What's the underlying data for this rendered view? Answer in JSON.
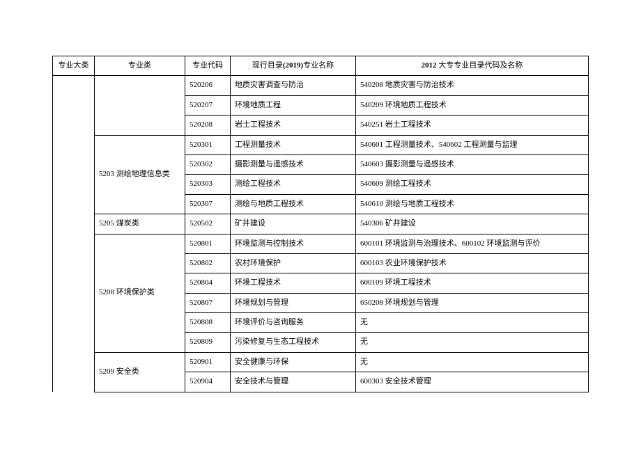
{
  "headers": {
    "col1": "专业大类",
    "col2": "专业类",
    "col3": "专业代码",
    "col4_prefix": "现行目录",
    "col4_bold": "(2019)",
    "col4_suffix": "专业名称",
    "col5_bold": "2012",
    "col5_suffix": " 大专专业目录代码及名称"
  },
  "groups": [
    {
      "cat2": "",
      "rows": [
        {
          "code": "520206",
          "name": "地质灾害调查与防治",
          "ref": "540208 地质灾害与防治技术"
        },
        {
          "code": "520207",
          "name": "环境地质工程",
          "ref": "540209 环境地质工程技术"
        },
        {
          "code": "520208",
          "name": "岩土工程技术",
          "ref": "540251 岩土工程技术"
        }
      ]
    },
    {
      "cat2": "5203 测绘地理信息类",
      "rows": [
        {
          "code": "520301",
          "name": "工程测量技术",
          "ref": "540601 工程测量技术、540602 工程测量与监理"
        },
        {
          "code": "520302",
          "name": "摄影测量与遥感技术",
          "ref": "540603 摄影测量与遥感技术"
        },
        {
          "code": "520303",
          "name": "测绘工程技术",
          "ref": "540609 测绘工程技术"
        },
        {
          "code": "520307",
          "name": "测绘与地质工程技术",
          "ref": "540610 测绘与地质工程技术"
        }
      ]
    },
    {
      "cat2": "5205 煤炭类",
      "rows": [
        {
          "code": "520502",
          "name": "矿井建设",
          "ref": "540306 矿井建设"
        }
      ]
    },
    {
      "cat2": "5208 环境保护类",
      "rows": [
        {
          "code": "520801",
          "name": "环境监测与控制技术",
          "ref": "600101 环境监测与治理技术、600102 环境监测与评价"
        },
        {
          "code": "520802",
          "name": "农村环境保护",
          "ref": "600103 农业环境保护技术"
        },
        {
          "code": "520804",
          "name": "环境工程技术",
          "ref": "600109 环境工程技术"
        },
        {
          "code": "520807",
          "name": "环境规划与管理",
          "ref": "650208 环境规划与管理"
        },
        {
          "code": "520808",
          "name": "环境评价与咨询服务",
          "ref": "无"
        },
        {
          "code": "520809",
          "name": "污染修复与生态工程技术",
          "ref": "无"
        }
      ]
    },
    {
      "cat2": "5209 安全类",
      "rows": [
        {
          "code": "520901",
          "name": "安全健康与环保",
          "ref": "无"
        },
        {
          "code": "520904",
          "name": "安全技术与管理",
          "ref": "600303 安全技术管理"
        }
      ]
    }
  ]
}
